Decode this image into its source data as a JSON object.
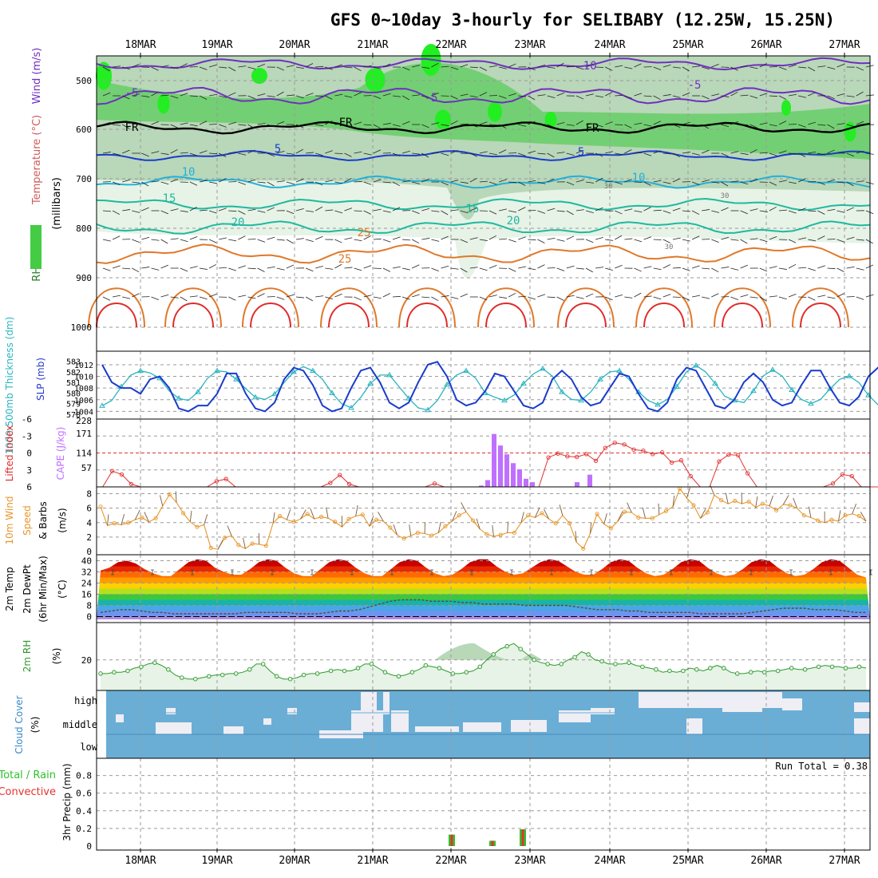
{
  "title": "GFS 0~10day 3-hourly for SELIBABY (12.25W, 15.25N)",
  "dates": [
    "18MAR",
    "19MAR",
    "20MAR",
    "21MAR",
    "22MAR",
    "23MAR",
    "24MAR",
    "25MAR",
    "26MAR",
    "27MAR"
  ],
  "run_total_label": "Run Total = 0.38",
  "colors": {
    "frame": "#000000",
    "grid": "#9a9a9a",
    "rh_light": "#e6f3e6",
    "rh_mid": "#b9d7b9",
    "rh_green": "#55cc55",
    "rh_bright": "#22ee22",
    "slp": "#1a3ccc",
    "thickness": "#2ab4c0",
    "cape": "#c070ff",
    "lifted": "#e03030",
    "wind10": "#e8962a",
    "barb": "#7a5a3a",
    "rh2m": "#2e9a2e",
    "cloud": "#6aaed6",
    "cloud_clear": "#eeeef4",
    "precip_total": "#2ec22e",
    "precip_conv": "#e83030",
    "temp_purple": "#7030c0",
    "temp_orange": "#e0782a",
    "temp_red": "#e02a2a",
    "temp_cyan": "#22b0d8",
    "temp_teal": "#20b8a0"
  },
  "panels": {
    "upper": {
      "y_label": "(millibars)",
      "legend": [
        "RH (%)",
        "Temperature (°C)",
        "Wind (m/s)"
      ],
      "ticks": [
        "500",
        "600",
        "700",
        "800",
        "900",
        "1000"
      ],
      "isotherm_labels": [
        "-10",
        "-5",
        "-5",
        "-5",
        "FR",
        "FR",
        "FR",
        "5",
        "5",
        "10",
        "10",
        "15",
        "15",
        "20",
        "20",
        "25",
        "25",
        "30",
        "30",
        "30"
      ]
    },
    "thickness_slp": {
      "left_label": "1000-500mb Thickness (dm)",
      "right_label": "SLP (mb)",
      "ticks_left": [
        "583",
        "582",
        "581",
        "580",
        "579",
        "578"
      ],
      "ticks_right": [
        "1012",
        "1010",
        "1008",
        "1006",
        "1004"
      ]
    },
    "cape_li": {
      "left_label": "Lifted Index",
      "right_label": "CAPE (J/kg)",
      "ticks_left": [
        "-6",
        "-3",
        "0",
        "3",
        "6"
      ],
      "ticks_right": [
        "228",
        "171",
        "114",
        "57"
      ]
    },
    "wind10": {
      "label": "10m Wind Speed & Barbs (m/s)",
      "label_lines": [
        "10m Wind",
        "Speed",
        "& Barbs"
      ],
      "unit": "(m/s)",
      "ticks": [
        "8",
        "6",
        "4",
        "2",
        "0"
      ]
    },
    "temp2m": {
      "label_lines": [
        "2m Temp",
        "2m DewPt",
        "(6hr Min/Max)"
      ],
      "unit": "(°C)",
      "ticks": [
        "40",
        "32",
        "24",
        "16",
        "8",
        "0"
      ]
    },
    "rh2m": {
      "label": "2m RH",
      "unit": "(%)",
      "ticks": [
        "20"
      ]
    },
    "cloud": {
      "label": "Cloud Cover",
      "unit": "(%)",
      "levels": [
        "high",
        "middle",
        "low"
      ]
    },
    "precip": {
      "label_lines": [
        "Total / Rain",
        "Convective"
      ],
      "unit": "3hr Precip (mm)",
      "ticks": [
        "0.8",
        "0.6",
        "0.4",
        "0.2",
        "0"
      ]
    }
  },
  "chart_data": [
    {
      "type": "line",
      "name": "1000-500mb Thickness",
      "unit": "dm",
      "x": "3-hourly, 17MAR 12Z to 27MAR 09Z",
      "ylim": [
        578,
        583.5
      ],
      "values": [
        578.8,
        579.3,
        580.6,
        581.7,
        582.1,
        581.9,
        581.4,
        580.2,
        579.5,
        579.3,
        580.1,
        581.4,
        582.1,
        582.0,
        581.3,
        580.4,
        579.6,
        579.4,
        579.9,
        581.0,
        582.0,
        582.5,
        582.1,
        581.3,
        580.0,
        579.0,
        578.6,
        579.6,
        580.9,
        581.7,
        581.7,
        580.6,
        579.5,
        578.6,
        578.4,
        579.3,
        580.8,
        581.7,
        582.1,
        581.4,
        580.0,
        579.6,
        579.3,
        579.8,
        580.9,
        581.8,
        582.3,
        581.6,
        580.1,
        579.4,
        579.3,
        580.1,
        581.3,
        582.0,
        582.1,
        581.3,
        580.1,
        579.3,
        578.9,
        579.4,
        580.6,
        582.0,
        582.6,
        582.0,
        580.9,
        579.7,
        579.3,
        579.1,
        580.2,
        581.6,
        582.2,
        581.6,
        580.3,
        579.4,
        579.0,
        579.4,
        580.4,
        581.3,
        581.6,
        581.0,
        579.8,
        578.9,
        578.6,
        579.2,
        580.7,
        581.9,
        582.1,
        581.7,
        580.6,
        579.6,
        579.4
      ]
    },
    {
      "type": "line",
      "name": "SLP",
      "unit": "mb",
      "ylim": [
        1003.5,
        1013.5
      ],
      "values": [
        1012.0,
        1009.0,
        1008.0,
        1008.0,
        1007.0,
        1009.5,
        1010.0,
        1008.0,
        1004.5,
        1004.0,
        1005.0,
        1005.0,
        1007.0,
        1010.5,
        1010.5,
        1007.0,
        1004.5,
        1004.0,
        1005.5,
        1009.5,
        1011.5,
        1011.0,
        1008.5,
        1005.0,
        1004.0,
        1004.5,
        1008.0,
        1011.0,
        1011.5,
        1009.0,
        1005.5,
        1004.5,
        1005.5,
        1009.0,
        1012.0,
        1012.5,
        1010.0,
        1006.0,
        1005.0,
        1005.5,
        1007.5,
        1010.5,
        1010.0,
        1007.5,
        1005.0,
        1004.5,
        1005.5,
        1009.5,
        1011.0,
        1009.5,
        1006.5,
        1005.0,
        1005.5,
        1008.0,
        1010.5,
        1010.0,
        1007.0,
        1004.5,
        1004.0,
        1005.5,
        1009.5,
        1011.5,
        1011.0,
        1008.0,
        1005.0,
        1004.5,
        1006.0,
        1009.0,
        1010.5,
        1009.0,
        1006.0,
        1005.0,
        1005.5,
        1008.5,
        1011.0,
        1011.0,
        1008.0,
        1005.5,
        1005.0,
        1006.5,
        1010.0,
        1011.5,
        1010.0,
        1006.5,
        1005.5,
        1006.0,
        1007.5,
        1006.0,
        1006.5,
        1006.0,
        1006.0
      ]
    },
    {
      "type": "bar",
      "name": "CAPE",
      "unit": "J/kg",
      "ylim": [
        0,
        228
      ],
      "values": [
        0,
        0,
        0,
        0,
        0,
        0,
        0,
        0,
        0,
        0,
        0,
        0,
        0,
        0,
        0,
        0,
        0,
        0,
        0,
        0,
        0,
        0,
        0,
        0,
        0,
        0,
        0,
        0,
        0,
        0,
        0,
        0,
        0,
        0,
        0,
        0,
        0,
        0,
        0,
        0,
        0,
        0,
        0,
        0,
        0,
        0,
        0,
        0,
        0,
        0,
        0,
        0,
        0,
        0,
        0,
        0,
        0,
        0,
        0,
        0,
        0,
        0,
        0,
        0,
        0,
        0,
        0,
        0,
        0,
        0,
        0,
        0,
        0,
        0,
        0,
        0,
        0,
        0,
        0,
        0,
        0,
        0,
        0,
        0,
        0,
        0,
        0,
        0,
        0,
        0,
        0
      ]
    },
    {
      "type": "line",
      "name": "Lifted Index",
      "ylim": [
        6,
        -6
      ],
      "values": [
        6,
        3.2,
        3.8,
        5.5,
        6,
        6,
        6,
        6,
        6,
        6,
        6,
        6,
        5,
        4.6,
        6,
        6,
        6,
        6,
        6,
        6,
        6,
        6,
        6,
        6,
        5.3,
        3.9,
        5.5,
        6,
        6,
        6,
        6,
        6,
        6,
        6,
        6,
        5.4,
        6,
        6,
        6,
        6,
        6,
        6,
        6,
        6,
        6,
        6,
        6,
        0.8,
        0.1,
        0.6,
        0.7,
        0.2,
        1.4,
        -0.9,
        -1.8,
        -1.5,
        -0.6,
        -0.4,
        0.2,
        -0.1,
        1.7,
        1.3,
        4.1,
        6,
        6,
        1.5,
        0.3,
        0.4,
        3.6,
        6,
        6,
        6,
        6,
        6,
        6,
        6,
        6,
        5.4,
        3.8,
        4.1,
        6,
        6,
        6,
        6,
        6,
        6,
        6,
        6,
        6,
        6,
        6,
        6,
        6,
        6,
        4.3,
        5.1,
        6,
        6,
        6,
        6,
        6,
        6,
        6,
        6,
        6,
        6,
        3.8,
        5.2,
        6,
        6,
        6
      ]
    },
    {
      "type": "line",
      "name": "10m Wind Speed",
      "unit": "m/s",
      "ylim": [
        0,
        8.5
      ],
      "values": [
        6.2,
        3.6,
        3.9,
        3.7,
        4.0,
        4.4,
        4.7,
        4.1,
        4.6,
        6.3,
        7.9,
        6.8,
        5.3,
        4.1,
        3.4,
        3.7,
        0.5,
        0.3,
        1.9,
        2.2,
        0.9,
        0.4,
        1.1,
        1.0,
        0.8,
        3.9,
        4.9,
        4.4,
        4.1,
        4.5,
        5.2,
        4.5,
        4.8,
        4.6,
        4.1,
        3.4,
        4.5,
        4.9,
        5.1,
        3.5,
        4.4,
        4.2,
        3.3,
        2.3,
        1.8,
        2.2,
        2.6,
        2.5,
        2.2,
        2.6,
        3.5,
        4.2,
        5.0,
        5.5,
        4.3,
        3.1,
        2.4,
        2.1,
        2.3,
        2.6,
        2.6,
        4.0,
        5.0,
        4.7,
        5.3,
        4.5,
        3.9,
        5.0,
        3.9,
        1.3,
        0.4,
        2.5,
        5.2,
        3.8,
        3.2,
        4.2,
        5.5,
        5.4,
        4.7,
        4.6,
        4.6,
        5.1,
        5.6,
        6.2,
        8.7,
        7.4,
        6.4,
        4.6,
        5.4,
        7.8,
        7.1,
        6.6,
        7.0,
        6.6,
        6.9,
        6.1,
        6.6,
        6.3,
        5.7,
        6.5,
        6.4,
        6.0,
        5.0,
        4.7,
        4.3,
        4.0,
        4.4,
        4.2,
        5.0,
        5.2,
        4.9,
        4.2
      ]
    },
    {
      "type": "area",
      "name": "2m Temp",
      "unit": "°C",
      "ylim": [
        -2,
        42
      ],
      "values": [
        33,
        35,
        39,
        40,
        38,
        34,
        31,
        29,
        29,
        34,
        39,
        41,
        40,
        35,
        32,
        30,
        30,
        34,
        39,
        41,
        40,
        35,
        31,
        29,
        29,
        34,
        39,
        41,
        40,
        35,
        31,
        29,
        29,
        34,
        39,
        41,
        40,
        35,
        31,
        29,
        30,
        34,
        39,
        41,
        41,
        36,
        32,
        30,
        31,
        35,
        39,
        41,
        40,
        36,
        32,
        30,
        30,
        34,
        39,
        41,
        40,
        35,
        31,
        29,
        30,
        34,
        39,
        41,
        40,
        35,
        31,
        29,
        30,
        34,
        39,
        41,
        40,
        35,
        31,
        29,
        30,
        34,
        39,
        41,
        40,
        35,
        30,
        28
      ]
    },
    {
      "type": "line",
      "name": "2m DewPt",
      "unit": "°C",
      "values": [
        3,
        4,
        5,
        5,
        4,
        3,
        3,
        2,
        2,
        2,
        2,
        2,
        2,
        2,
        3,
        3,
        3,
        3,
        3,
        2,
        2,
        2,
        3,
        4,
        4,
        5,
        7,
        9,
        11,
        12,
        12,
        12,
        11,
        11,
        11,
        10,
        10,
        9,
        9,
        9,
        9,
        8,
        8,
        8,
        8,
        8,
        7,
        6,
        5,
        5,
        5,
        4,
        4,
        3,
        3,
        3,
        3,
        3,
        2,
        2,
        2,
        2,
        2,
        3,
        4,
        5,
        6,
        6,
        6,
        5,
        5,
        5,
        4,
        3,
        3
      ]
    },
    {
      "type": "area",
      "name": "2m RH",
      "unit": "%",
      "ylim": [
        0,
        45
      ],
      "values": [
        10,
        10,
        11,
        11,
        12,
        14,
        15,
        17,
        18,
        16,
        13,
        9,
        7,
        6,
        6,
        7,
        8,
        9,
        9,
        10,
        10,
        11,
        13,
        17,
        17,
        12,
        8,
        6,
        6,
        7,
        9,
        10,
        10,
        11,
        12,
        13,
        12,
        12,
        14,
        17,
        17,
        14,
        11,
        9,
        8,
        9,
        11,
        13,
        16,
        15,
        14,
        12,
        10,
        10,
        11,
        12,
        15,
        20,
        24,
        28,
        30,
        32,
        28,
        24,
        20,
        18,
        17,
        16,
        17,
        20,
        22,
        26,
        24,
        20,
        19,
        17,
        17,
        17,
        18,
        16,
        15,
        14,
        13,
        11,
        12,
        11,
        12,
        14,
        13,
        12,
        14,
        16,
        14,
        11,
        10,
        10,
        11,
        12,
        11,
        12,
        12,
        13,
        14,
        13,
        13,
        14,
        15,
        16,
        15,
        15,
        14,
        14,
        15,
        14
      ]
    },
    {
      "type": "bar",
      "name": "3hr Precip",
      "unit": "mm",
      "ylim": [
        0,
        1
      ],
      "series": [
        {
          "name": "Total / Rain",
          "points": [
            [
              "22MAR 00Z",
              0.13
            ],
            [
              "22MAR 15Z",
              0.06
            ],
            [
              "22MAR 21Z",
              0.19
            ]
          ]
        },
        {
          "name": "Convective",
          "points": [
            [
              "22MAR 00Z",
              0.13
            ],
            [
              "22MAR 15Z",
              0.06
            ],
            [
              "22MAR 21Z",
              0.19
            ]
          ]
        }
      ]
    }
  ]
}
